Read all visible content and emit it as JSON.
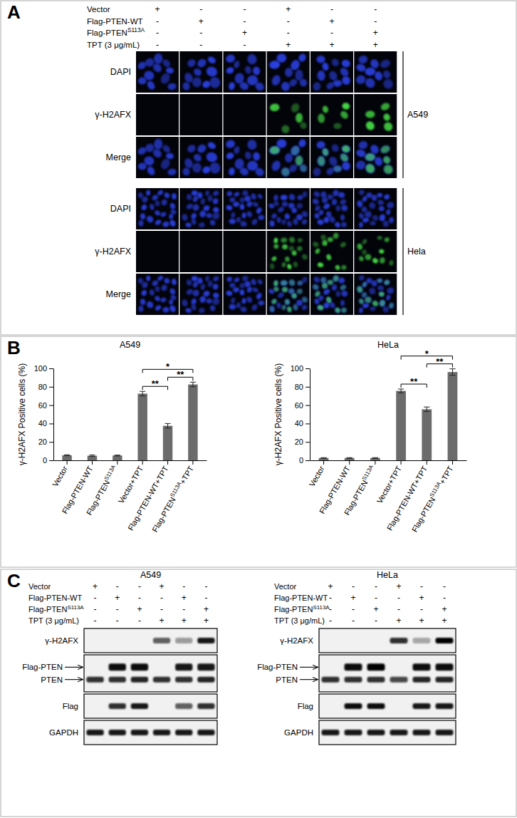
{
  "panel_a": {
    "label": "A",
    "conditions": {
      "rows": [
        "Vector",
        "Flag-PTEN-WT",
        "Flag-PTENS113A",
        "TPT (3 μg/mL)"
      ],
      "marks": [
        [
          "+",
          "-",
          "-",
          "+",
          "-",
          "-"
        ],
        [
          "-",
          "+",
          "-",
          "-",
          "+",
          "-"
        ],
        [
          "-",
          "-",
          "+",
          "-",
          "-",
          "+"
        ],
        [
          "-",
          "-",
          "-",
          "+",
          "+",
          "+"
        ]
      ]
    },
    "image_rows": [
      "DAPI",
      "γ-H2AFX",
      "Merge"
    ],
    "cell_lines": [
      "A549",
      "Hela"
    ]
  },
  "panel_b": {
    "label": "B"
  },
  "chart_data": [
    {
      "type": "bar",
      "title": "A549",
      "y_label": "γ-H2AFX Positive cells (%)",
      "categories": [
        "Vector",
        "Flag-PTEN-WT",
        "Flag-PTENS113A",
        "Vector+TPT",
        "Flag-PTEN-WT+TPT",
        "Flag-PTENS113A+TPT"
      ],
      "values": [
        5.5,
        5,
        5.2,
        72.5,
        37.5,
        82.5
      ],
      "errors": [
        0.5,
        0.8,
        0.5,
        2.5,
        2.5,
        2.5
      ],
      "color": "#6b6b6b",
      "ylim": [
        0,
        100
      ],
      "yticks": [
        0,
        20,
        40,
        60,
        80,
        100
      ],
      "significance": [
        {
          "from": "Vector+TPT",
          "to": "Flag-PTENS113A+TPT",
          "label": "*"
        },
        {
          "from": "Vector+TPT",
          "to": "Flag-PTEN-WT+TPT",
          "label": "**"
        },
        {
          "from": "Flag-PTEN-WT+TPT",
          "to": "Flag-PTENS113A+TPT",
          "label": "**"
        }
      ]
    },
    {
      "type": "bar",
      "title": "HeLa",
      "y_label": "γ-H2AFX Positive cells (%)",
      "categories": [
        "Vector",
        "Flag-PTEN-WT",
        "Flag-PTENS113A",
        "Vector+TPT",
        "Flag-PTEN-WT+TPT",
        "Flag-PTENS113A+TPT"
      ],
      "values": [
        2.5,
        2.5,
        2.5,
        75.5,
        55.5,
        96
      ],
      "errors": [
        0.4,
        0.4,
        0.4,
        2,
        2.5,
        3.5
      ],
      "color": "#6b6b6b",
      "ylim": [
        0,
        100
      ],
      "yticks": [
        0,
        20,
        40,
        60,
        80,
        100
      ],
      "significance": [
        {
          "from": "Vector+TPT",
          "to": "Flag-PTENS113A+TPT",
          "label": "*"
        },
        {
          "from": "Vector+TPT",
          "to": "Flag-PTEN-WT+TPT",
          "label": "**"
        },
        {
          "from": "Flag-PTEN-WT+TPT",
          "to": "Flag-PTENS113A+TPT",
          "label": "**"
        }
      ]
    }
  ],
  "panel_c": {
    "label": "C",
    "blots": [
      {
        "title": "A549",
        "conditions": {
          "rows": [
            "Vector",
            "Flag-PTEN-WT",
            "Flag-PTENS113A",
            "TPT (3 μg/mL)"
          ],
          "marks": [
            [
              "+",
              "-",
              "-",
              "+",
              "-",
              "-"
            ],
            [
              "-",
              "+",
              "-",
              "-",
              "+",
              "-"
            ],
            [
              "-",
              "-",
              "+",
              "-",
              "-",
              "+"
            ],
            [
              "-",
              "-",
              "-",
              "+",
              "+",
              "+"
            ]
          ]
        },
        "rows": [
          {
            "labels": [
              "γ-H2AFX"
            ],
            "intensity": [
              [
                0,
                0,
                0,
                0.6,
                0.35,
                0.9
              ]
            ]
          },
          {
            "labels": [
              "Flag-PTEN",
              "PTEN"
            ],
            "intensity": [
              [
                0,
                0.95,
                0.95,
                0,
                0.9,
                0.9
              ],
              [
                0.8,
                0.8,
                0.85,
                0.8,
                0.8,
                0.85
              ]
            ]
          },
          {
            "labels": [
              "Flag"
            ],
            "intensity": [
              [
                0,
                0.8,
                0.9,
                0,
                0.6,
                0.8
              ]
            ]
          },
          {
            "labels": [
              "GAPDH"
            ],
            "intensity": [
              [
                0.9,
                0.9,
                0.9,
                0.9,
                0.9,
                0.9
              ]
            ]
          }
        ]
      },
      {
        "title": "HeLa",
        "conditions": {
          "rows": [
            "Vector",
            "Flag-PTEN-WT",
            "Flag-PTENS113A",
            "TPT (3 μg/mL)"
          ],
          "marks": [
            [
              "+",
              "-",
              "-",
              "+",
              "-",
              "-"
            ],
            [
              "-",
              "+",
              "-",
              "-",
              "+",
              "-"
            ],
            [
              "-",
              "-",
              "+",
              "-",
              "-",
              "+"
            ],
            [
              "-",
              "-",
              "-",
              "+",
              "+",
              "+"
            ]
          ]
        },
        "rows": [
          {
            "labels": [
              "γ-H2AFX"
            ],
            "intensity": [
              [
                0,
                0,
                0,
                0.8,
                0.3,
                1
              ]
            ]
          },
          {
            "labels": [
              "Flag-PTEN",
              "PTEN"
            ],
            "intensity": [
              [
                0,
                0.95,
                1,
                0,
                0.95,
                0.95
              ],
              [
                0.8,
                0.8,
                0.8,
                0.7,
                0.85,
                0.85
              ]
            ]
          },
          {
            "labels": [
              "Flag"
            ],
            "intensity": [
              [
                0,
                0.95,
                0.95,
                0,
                0.9,
                0.9
              ]
            ]
          },
          {
            "labels": [
              "GAPDH"
            ],
            "intensity": [
              [
                0.9,
                0.9,
                0.9,
                0.9,
                0.9,
                0.9
              ]
            ]
          }
        ]
      }
    ]
  }
}
